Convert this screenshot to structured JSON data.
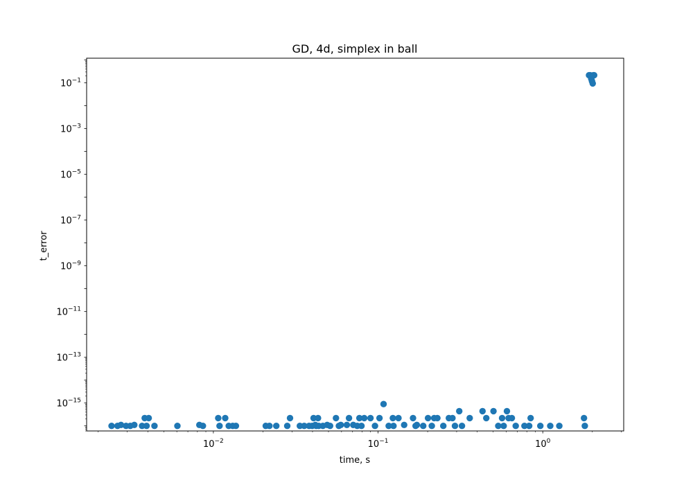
{
  "chart_data": {
    "type": "scatter",
    "title": "GD, 4d, simplex in ball",
    "xlabel": "time, s",
    "ylabel": "t_error",
    "xscale": "log",
    "yscale": "log",
    "xlim": [
      0.0017,
      3.1
    ],
    "ylim": [
      6e-17,
      1.2
    ],
    "x_ticks": [
      {
        "base": "10",
        "exp": "−2",
        "value": 0.01
      },
      {
        "base": "10",
        "exp": "−1",
        "value": 0.1
      },
      {
        "base": "10",
        "exp": "0",
        "value": 1
      }
    ],
    "y_ticks": [
      {
        "base": "10",
        "exp": "−1",
        "value": 0.1
      },
      {
        "base": "10",
        "exp": "−3",
        "value": 0.001
      },
      {
        "base": "10",
        "exp": "−5",
        "value": 1e-05
      },
      {
        "base": "10",
        "exp": "−7",
        "value": 1e-07
      },
      {
        "base": "10",
        "exp": "−9",
        "value": 1e-09
      },
      {
        "base": "10",
        "exp": "−11",
        "value": 1e-11
      },
      {
        "base": "10",
        "exp": "−13",
        "value": 1e-13
      },
      {
        "base": "10",
        "exp": "−15",
        "value": 1e-15
      }
    ],
    "grid": false,
    "marker_color": "#1f77b4",
    "series": [
      {
        "x": [
          0.00241,
          0.00262,
          0.00275,
          0.00295,
          0.00313,
          0.00331,
          0.00369,
          0.00383,
          0.00393,
          0.00405,
          0.00439,
          0.00605,
          0.00822,
          0.00864,
          0.0107,
          0.0109,
          0.0118,
          0.0124,
          0.0131,
          0.0137,
          0.0208,
          0.0219,
          0.0241,
          0.0281,
          0.0292,
          0.0335,
          0.0356,
          0.0381,
          0.0398,
          0.0406,
          0.0416,
          0.0421,
          0.0432,
          0.0436,
          0.0462,
          0.0491,
          0.0511,
          0.0555,
          0.0578,
          0.0594,
          0.0646,
          0.0666,
          0.0707,
          0.0747,
          0.077,
          0.0793,
          0.0824,
          0.0899,
          0.0958,
          0.102,
          0.108,
          0.116,
          0.123,
          0.124,
          0.133,
          0.144,
          0.163,
          0.169,
          0.172,
          0.188,
          0.201,
          0.212,
          0.219,
          0.229,
          0.249,
          0.269,
          0.283,
          0.293,
          0.311,
          0.323,
          0.36,
          0.431,
          0.454,
          0.502,
          0.537,
          0.566,
          0.579,
          0.606,
          0.62,
          0.649,
          0.685,
          0.774,
          0.827,
          0.844,
          0.966,
          1.11,
          1.26,
          1.78,
          1.8
        ],
        "y": [
          1e-16,
          1e-16,
          1.1e-16,
          1e-16,
          1e-16,
          1.1e-16,
          1e-16,
          2.2e-16,
          1e-16,
          2.2e-16,
          1e-16,
          1e-16,
          1.1e-16,
          1e-16,
          2.2e-16,
          1e-16,
          2.2e-16,
          1e-16,
          1e-16,
          1e-16,
          1e-16,
          1e-16,
          1e-16,
          1e-16,
          2.2e-16,
          1e-16,
          1e-16,
          1e-16,
          1e-16,
          2.2e-16,
          1.1e-16,
          1e-16,
          2.2e-16,
          1e-16,
          1e-16,
          1.1e-16,
          1e-16,
          2.2e-16,
          1e-16,
          1.1e-16,
          1.1e-16,
          2.2e-16,
          1.1e-16,
          1e-16,
          2.2e-16,
          1e-16,
          2.2e-16,
          2.2e-16,
          1e-16,
          2.2e-16,
          9e-16,
          1e-16,
          2.2e-16,
          1e-16,
          2.2e-16,
          1.1e-16,
          2.2e-16,
          1e-16,
          1.1e-16,
          1e-16,
          2.2e-16,
          1e-16,
          2.2e-16,
          2.2e-16,
          1e-16,
          2.2e-16,
          2.2e-16,
          1e-16,
          4.4e-16,
          1e-16,
          2.2e-16,
          4.4e-16,
          2.2e-16,
          4.4e-16,
          1e-16,
          2.2e-16,
          1e-16,
          4.4e-16,
          2.2e-16,
          2.2e-16,
          1e-16,
          1e-16,
          1e-16,
          2.2e-16,
          1e-16,
          1e-16,
          1e-16,
          2.2e-16,
          1e-16
        ]
      },
      {
        "x": [
          1.91,
          1.94,
          1.97,
          1.99,
          2.01,
          2.03,
          2.05
        ],
        "y": [
          0.215,
          0.215,
          0.15,
          0.12,
          0.095,
          0.215,
          0.215
        ]
      }
    ]
  }
}
